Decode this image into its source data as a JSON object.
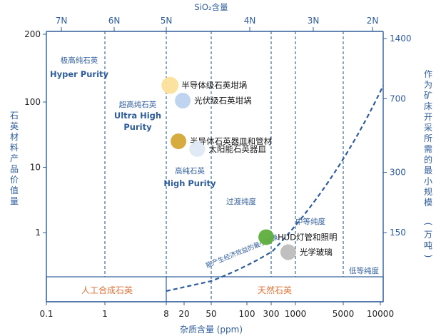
{
  "chart_data": {
    "type": "scatter",
    "title": "",
    "xlabel": "杂质含量 (ppm)",
    "top_axis_label": "SiO₂含量",
    "ylabel": "石英材料产品价值量",
    "ylabel_right": "作为矿床开采所需的最小规模 (万吨)",
    "x_scale": "log",
    "xlim": [
      0.1,
      10000
    ],
    "x_ticks": [
      "0.1",
      "1",
      "8",
      "20",
      "50",
      "100",
      "300",
      "1000",
      "5000",
      "10000"
    ],
    "top_ticks": [
      "7N",
      "6N",
      "5N",
      "4N",
      "3N",
      "2N"
    ],
    "y_scale": "log",
    "ylim": [
      0.3,
      200
    ],
    "y_ticks": [
      "1",
      "10",
      "100",
      "200"
    ],
    "y_right_ticks": [
      "150",
      "300",
      "700",
      "1400"
    ],
    "zones": [
      {
        "label": "极高纯石英",
        "label_en": "Hyper Purity"
      },
      {
        "label": "超高纯石英",
        "label_en": "Ultra High Purity"
      },
      {
        "label": "高纯石英",
        "label_en": "High Purity"
      },
      {
        "label": "过渡纯度",
        "label_en": ""
      },
      {
        "label": "中等纯度",
        "label_en": ""
      },
      {
        "label": "低等纯度",
        "label_en": ""
      }
    ],
    "bottom_band": {
      "left": "人工合成石英",
      "right": "天然石英"
    },
    "curve_label": "能产生经济效益的最小规模",
    "points": [
      {
        "label": "半导体级石英坩埚",
        "x": 9,
        "y": 180,
        "color": "#fbe29a"
      },
      {
        "label": "半导体石英器皿和管材",
        "x": 12,
        "y": 25,
        "color": "#d4a636"
      },
      {
        "label": "光伏级石英坩埚",
        "x": 14,
        "y": 105,
        "color": "#bcd3ee"
      },
      {
        "label": "太阳能石英器皿",
        "x": 25,
        "y": 19,
        "color": "#dde9f6"
      },
      {
        "label": "HUD灯管和照明",
        "x": 240,
        "y": 0.85,
        "color": "#5fae3e"
      },
      {
        "label": "光学玻璃",
        "x": 700,
        "y": 0.5,
        "color": "#bdbdbd"
      }
    ],
    "colors": {
      "axis": "#2f5d9c",
      "label_orange": "#e0733b",
      "curve": "#2f5d9c"
    }
  }
}
